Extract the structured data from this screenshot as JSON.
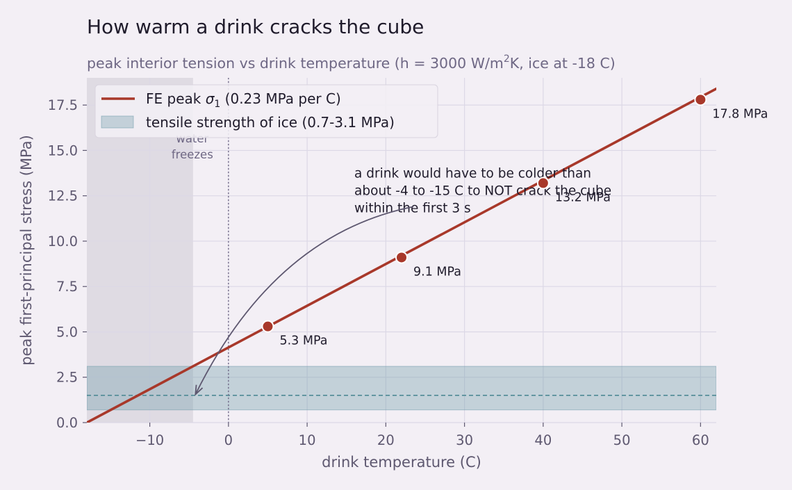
{
  "chart_data": {
    "type": "line",
    "title": "How warm a drink cracks the cube",
    "subtitle": {
      "main": "peak interior tension vs drink temperature  (h = 3000 W/m",
      "sup": "2",
      "tail": "K, ice at -18 C)"
    },
    "xlabel": "drink temperature  (C)",
    "ylabel": "peak first-principal stress  (MPa)",
    "xlim": [
      -18,
      62
    ],
    "ylim": [
      0,
      19
    ],
    "xticks": [
      -10,
      0,
      10,
      20,
      30,
      40,
      50,
      60
    ],
    "xtick_labels": [
      "−10",
      "0",
      "10",
      "20",
      "30",
      "40",
      "50",
      "60"
    ],
    "yticks": [
      0,
      2.5,
      5,
      7.5,
      10,
      12.5,
      15,
      17.5
    ],
    "ytick_labels": [
      "0.0",
      "2.5",
      "5.0",
      "7.5",
      "10.0",
      "12.5",
      "15.0",
      "17.5"
    ],
    "grid": true,
    "legend_position": "top-left",
    "series": [
      {
        "name_main": "FE peak ",
        "name_symbol": "σ",
        "name_sub": "1",
        "name_tail": "  (0.23 MPa per C)",
        "slope": 0.23,
        "intercept": 4.14,
        "line_x": [
          -18,
          62
        ],
        "color": "#a8382a"
      }
    ],
    "points": [
      {
        "x": 5,
        "y": 5.3,
        "label": "5.3 MPa"
      },
      {
        "x": 22,
        "y": 9.1,
        "label": "9.1 MPa"
      },
      {
        "x": 40,
        "y": 13.2,
        "label": "13.2 MPa"
      },
      {
        "x": 60,
        "y": 17.8,
        "label": "17.8 MPa"
      }
    ],
    "strength_band": {
      "label": "tensile strength of ice (0.7-3.1 MPa)",
      "low": 0.7,
      "high": 3.1,
      "mid": 1.5,
      "color": "#6f9aaa"
    },
    "frozen_region": {
      "x_from": -18,
      "x_to": -4.5,
      "color": "#dfdbe3"
    },
    "freezing_line": {
      "x": 0,
      "label_line1": "water",
      "label_line2": "freezes"
    },
    "annotation": {
      "lines": [
        "a drink would have to be colder than",
        "about -4 to -15 C to NOT crack the cube",
        "within the first 3 s"
      ],
      "text_x": 16,
      "text_y": 13.5,
      "arrow_from_x": 23.5,
      "arrow_from_y": 11.9,
      "arrow_to_x": -4.2,
      "arrow_to_y": 1.55
    }
  }
}
